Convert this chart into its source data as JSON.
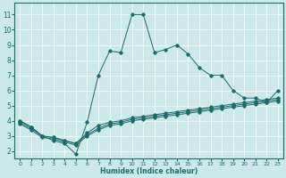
{
  "xlabel": "Humidex (Indice chaleur)",
  "bg_color": "#cce8e8",
  "grid_color": "#ffffff",
  "line_color": "#1a6b6b",
  "xlim": [
    -0.5,
    23.5
  ],
  "ylim": [
    1.5,
    11.8
  ],
  "xticks": [
    0,
    1,
    2,
    3,
    4,
    5,
    6,
    7,
    8,
    9,
    10,
    11,
    12,
    13,
    14,
    15,
    16,
    17,
    18,
    19,
    20,
    21,
    22,
    23
  ],
  "yticks": [
    2,
    3,
    4,
    5,
    6,
    7,
    8,
    9,
    10,
    11
  ],
  "series": [
    {
      "x": [
        0,
        1,
        2,
        3,
        4,
        5,
        6,
        7,
        8,
        9,
        10,
        11,
        12,
        13,
        14,
        15,
        16,
        17,
        18,
        19,
        20,
        21,
        22,
        23
      ],
      "y": [
        4.0,
        3.6,
        3.0,
        2.7,
        2.5,
        1.8,
        3.9,
        7.0,
        8.6,
        8.5,
        11.0,
        11.0,
        8.5,
        8.7,
        9.0,
        8.4,
        7.5,
        7.0,
        7.0,
        6.0,
        5.5,
        5.5,
        5.2,
        6.0
      ]
    },
    {
      "x": [
        0,
        1,
        2,
        3,
        4,
        5,
        6,
        7,
        8,
        9,
        10,
        11,
        12,
        13,
        14,
        15,
        16,
        17,
        18,
        19,
        20,
        21,
        22,
        23
      ],
      "y": [
        4.0,
        3.6,
        3.0,
        2.9,
        2.7,
        2.5,
        3.2,
        3.7,
        3.9,
        4.0,
        4.2,
        4.3,
        4.4,
        4.5,
        4.6,
        4.7,
        4.8,
        4.9,
        5.0,
        5.1,
        5.2,
        5.3,
        5.4,
        5.5
      ]
    },
    {
      "x": [
        0,
        1,
        2,
        3,
        4,
        5,
        6,
        7,
        8,
        9,
        10,
        11,
        12,
        13,
        14,
        15,
        16,
        17,
        18,
        19,
        20,
        21,
        22,
        23
      ],
      "y": [
        3.9,
        3.5,
        3.0,
        2.9,
        2.7,
        2.5,
        3.1,
        3.5,
        3.8,
        3.9,
        4.1,
        4.2,
        4.3,
        4.4,
        4.5,
        4.6,
        4.7,
        4.8,
        4.9,
        5.0,
        5.1,
        5.2,
        5.3,
        5.4
      ]
    },
    {
      "x": [
        0,
        1,
        2,
        3,
        4,
        5,
        6,
        7,
        8,
        9,
        10,
        11,
        12,
        13,
        14,
        15,
        16,
        17,
        18,
        19,
        20,
        21,
        22,
        23
      ],
      "y": [
        3.8,
        3.4,
        2.9,
        2.8,
        2.6,
        2.4,
        3.0,
        3.4,
        3.7,
        3.8,
        4.0,
        4.1,
        4.2,
        4.3,
        4.4,
        4.5,
        4.6,
        4.7,
        4.8,
        4.9,
        5.0,
        5.1,
        5.2,
        5.3
      ]
    }
  ]
}
